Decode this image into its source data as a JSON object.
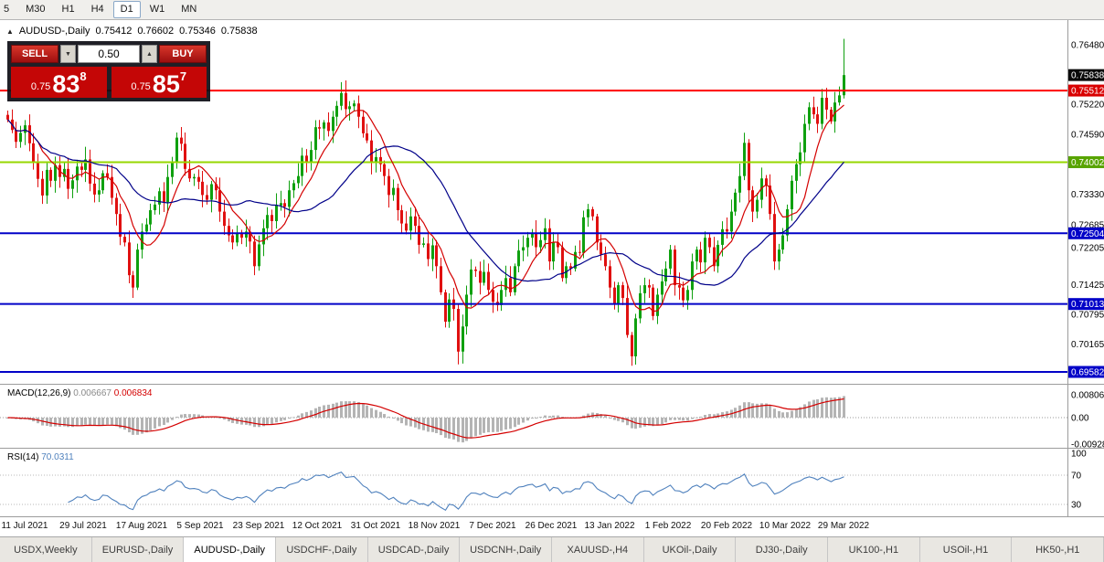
{
  "toolbar": {
    "timeframes": [
      {
        "label": "5",
        "active": false
      },
      {
        "label": "M30",
        "active": false
      },
      {
        "label": "H1",
        "active": false
      },
      {
        "label": "H4",
        "active": false
      },
      {
        "label": "D1",
        "active": true
      },
      {
        "label": "W1",
        "active": false
      },
      {
        "label": "MN",
        "active": false
      }
    ]
  },
  "chart": {
    "title": {
      "collapse": "▲",
      "symbol": "AUDUSD-,Daily",
      "open": "0.75412",
      "high": "0.76602",
      "low": "0.75346",
      "close": "0.75838"
    },
    "trade_panel": {
      "sell_label": "SELL",
      "buy_label": "BUY",
      "volume": "0.50",
      "spin_down": "▼",
      "spin_up": "▲",
      "sell_price_small": "0.75",
      "sell_price_big": "83",
      "sell_price_sup": "8",
      "buy_price_small": "0.75",
      "buy_price_big": "85",
      "buy_price_sup": "7"
    }
  },
  "chart_data": {
    "type": "candlestick",
    "symbol": "AUDUSD-,Daily",
    "timeframe": "Daily",
    "quote": {
      "open": 0.75412,
      "high": 0.76602,
      "low": 0.75346,
      "close": 0.75838
    },
    "view": {
      "price_top": 0.769,
      "price_bottom": 0.6937
    },
    "candle_colors": {
      "up": "#0fa00f",
      "down": "#e01010"
    },
    "series": {
      "first_open": 0.75,
      "closes": [
        0.749,
        0.7468,
        0.7443,
        0.7462,
        0.7478,
        0.744,
        0.7402,
        0.7365,
        0.733,
        0.7384,
        0.7361,
        0.7394,
        0.7369,
        0.7386,
        0.7344,
        0.7362,
        0.7391,
        0.7384,
        0.7406,
        0.7355,
        0.7332,
        0.7341,
        0.7377,
        0.7369,
        0.7325,
        0.7291,
        0.7243,
        0.7231,
        0.7162,
        0.7136,
        0.7216,
        0.7254,
        0.7269,
        0.7299,
        0.7311,
        0.7339,
        0.7316,
        0.7369,
        0.7401,
        0.7452,
        0.7439,
        0.7386,
        0.7366,
        0.7369,
        0.7359,
        0.7331,
        0.7321,
        0.7354,
        0.7341,
        0.7296,
        0.7266,
        0.7246,
        0.7231,
        0.7251,
        0.7241,
        0.7254,
        0.7233,
        0.7181,
        0.7227,
        0.7261,
        0.7289,
        0.7276,
        0.7309,
        0.7314,
        0.7306,
        0.7341,
        0.7356,
        0.7371,
        0.7414,
        0.7401,
        0.7426,
        0.7474,
        0.7471,
        0.7484,
        0.7466,
        0.7496,
        0.7519,
        0.7546,
        0.7512,
        0.7518,
        0.7524,
        0.7496,
        0.7461,
        0.7446,
        0.7401,
        0.7411,
        0.7396,
        0.7371,
        0.7331,
        0.7346,
        0.7299,
        0.7271,
        0.7256,
        0.7286,
        0.7266,
        0.7226,
        0.7229,
        0.7196,
        0.7225,
        0.7181,
        0.7126,
        0.7064,
        0.7111,
        0.7091,
        0.7001,
        0.7054,
        0.7121,
        0.7174,
        0.7171,
        0.7146,
        0.7169,
        0.7131,
        0.7106,
        0.7099,
        0.7131,
        0.7156,
        0.7126,
        0.7181,
        0.7214,
        0.7221,
        0.7241,
        0.7251,
        0.7221,
        0.7236,
        0.7261,
        0.7191,
        0.7231,
        0.7221,
        0.7156,
        0.7181,
        0.7176,
        0.7211,
        0.7209,
        0.7284,
        0.7301,
        0.7286,
        0.7231,
        0.7206,
        0.7181,
        0.7136,
        0.7101,
        0.7141,
        0.7114,
        0.7036,
        0.6991,
        0.7071,
        0.7124,
        0.7141,
        0.7136,
        0.7076,
        0.7121,
        0.7149,
        0.7176,
        0.7216,
        0.7141,
        0.7136,
        0.7109,
        0.7131,
        0.7191,
        0.7216,
        0.7189,
        0.7241,
        0.7221,
        0.7181,
        0.7226,
        0.7259,
        0.7254,
        0.7296,
        0.7336,
        0.7371,
        0.7441,
        0.7341,
        0.7296,
        0.7321,
        0.7366,
        0.7351,
        0.7291,
        0.7191,
        0.7216,
        0.7246,
        0.7301,
        0.7361,
        0.7396,
        0.7421,
        0.7481,
        0.7516,
        0.7501,
        0.7481,
        0.7536,
        0.7511,
        0.7486,
        0.7526,
        0.7541,
        0.75838
      ],
      "last_candle": {
        "open": 0.75412,
        "high": 0.76602,
        "low": 0.75346,
        "close": 0.75838
      }
    },
    "moving_averages": [
      {
        "period": 8,
        "color": "#d40000"
      },
      {
        "period": 26,
        "color": "#000089"
      }
    ],
    "hlines": [
      {
        "value": 0.75512,
        "color": "#ff0000",
        "width": 2
      },
      {
        "value": 0.74002,
        "color": "#97d700",
        "width": 2
      },
      {
        "value": 0.72504,
        "color": "#0202c8",
        "width": 2
      },
      {
        "value": 0.71013,
        "color": "#0202c8",
        "width": 2
      },
      {
        "value": 0.69582,
        "color": "#0202c8",
        "width": 2
      }
    ],
    "price_axis_labels": [
      {
        "text": "0.76480",
        "value": 0.7648
      },
      {
        "text": "0.75220",
        "value": 0.7522
      },
      {
        "text": "0.74590",
        "value": 0.7459
      },
      {
        "text": "0.73330",
        "value": 0.7333
      },
      {
        "text": "0.72685",
        "value": 0.72685
      },
      {
        "text": "0.72205",
        "value": 0.72205
      },
      {
        "text": "0.71425",
        "value": 0.71425
      },
      {
        "text": "0.70795",
        "value": 0.70795
      },
      {
        "text": "0.70165",
        "value": 0.70165
      }
    ],
    "price_markers": [
      {
        "text": "0.75838",
        "value": 0.75838,
        "bg": "#0a0a0a"
      },
      {
        "text": "0.75512",
        "value": 0.75512,
        "bg": "#d90000"
      },
      {
        "text": "0.74002",
        "value": 0.74002,
        "bg": "#58a400"
      },
      {
        "text": "0.72504",
        "value": 0.72504,
        "bg": "#0202c8"
      },
      {
        "text": "0.71013",
        "value": 0.71013,
        "bg": "#0202c8"
      },
      {
        "text": "0.69582",
        "value": 0.69582,
        "bg": "#0202c8"
      }
    ],
    "macd": {
      "label": "MACD(12,26,9)",
      "value_main": "0.006667",
      "value_signal": "0.006834",
      "axis": [
        {
          "text": "0.00806",
          "value": 0.00806
        },
        {
          "text": "0.00",
          "value": 0
        },
        {
          "text": "-0.00928",
          "value": -0.00928
        }
      ],
      "hist_color": "#b4b4b4",
      "signal_color": "#d40000"
    },
    "rsi": {
      "label": "RSI(14)",
      "value": "70.0311",
      "axis": [
        {
          "text": "100",
          "value": 100
        },
        {
          "text": "70",
          "value": 70
        },
        {
          "text": "30",
          "value": 30
        }
      ],
      "levels": [
        70,
        30
      ],
      "color": "#4f81bd"
    },
    "date_axis": [
      "11 Jul 2021",
      "29 Jul 2021",
      "17 Aug 2021",
      "5 Sep 2021",
      "23 Sep 2021",
      "12 Oct 2021",
      "31 Oct 2021",
      "18 Nov 2021",
      "7 Dec 2021",
      "26 Dec 2021",
      "13 Jan 2022",
      "1 Feb 2022",
      "20 Feb 2022",
      "10 Mar 2022",
      "29 Mar 2022"
    ]
  },
  "tabs": [
    {
      "label": "USDX,Weekly",
      "active": false
    },
    {
      "label": "EURUSD-,Daily",
      "active": false
    },
    {
      "label": "AUDUSD-,Daily",
      "active": true
    },
    {
      "label": "USDCHF-,Daily",
      "active": false
    },
    {
      "label": "USDCAD-,Daily",
      "active": false
    },
    {
      "label": "USDCNH-,Daily",
      "active": false
    },
    {
      "label": "XAUUSD-,H4",
      "active": false
    },
    {
      "label": "UKOil-,Daily",
      "active": false
    },
    {
      "label": "DJ30-,Daily",
      "active": false
    },
    {
      "label": "UK100-,H1",
      "active": false
    },
    {
      "label": "USOil-,H1",
      "active": false
    },
    {
      "label": "HK50-,H1",
      "active": false
    }
  ]
}
